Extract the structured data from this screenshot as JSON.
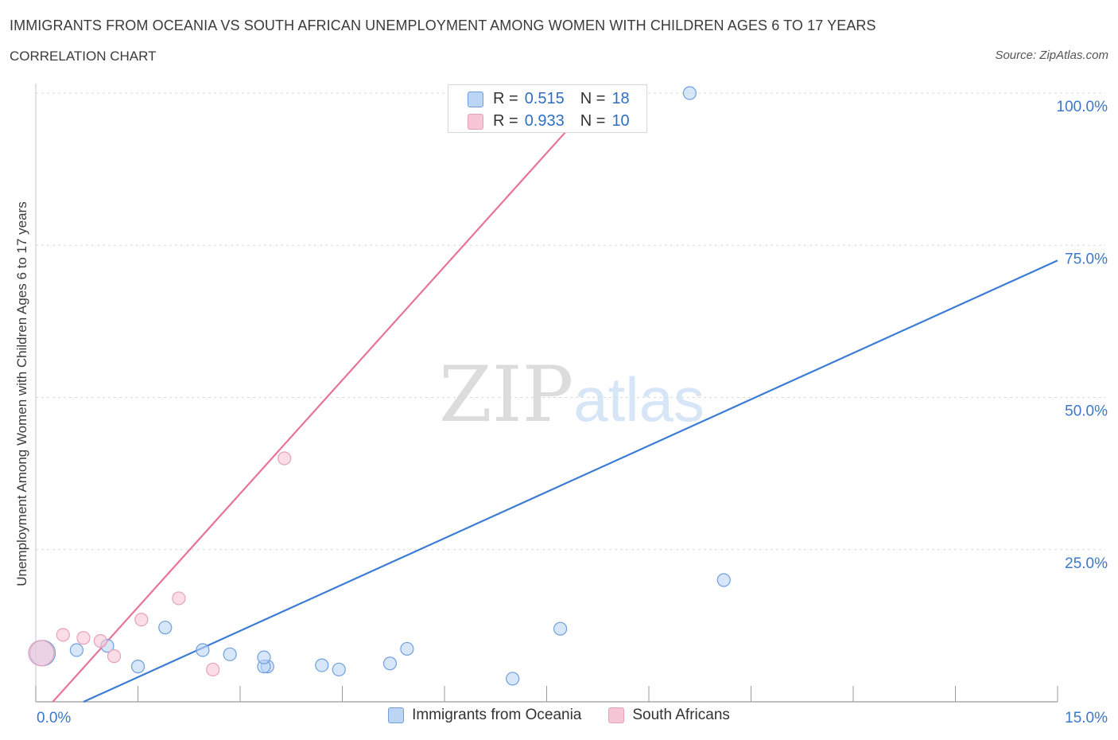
{
  "header": {
    "title": "IMMIGRANTS FROM OCEANIA VS SOUTH AFRICAN UNEMPLOYMENT AMONG WOMEN WITH CHILDREN AGES 6 TO 17 YEARS",
    "subtitle": "CORRELATION CHART",
    "source": "Source: ZipAtlas.com"
  },
  "watermark": {
    "zip": "ZIP",
    "atlas": "atlas"
  },
  "colors": {
    "blue": "#3a7bd5",
    "blue_fill": "#bcd5f5",
    "pink": "#e8739a",
    "pink_fill": "#f7c6d6",
    "axis_text": "#3b78c9",
    "grid": "#d9d9d9"
  },
  "legend_top": {
    "rows": [
      {
        "r_label": "R =",
        "r_value": "0.515",
        "n_label": "N =",
        "n_value": "18"
      },
      {
        "r_label": "R =",
        "r_value": "0.933",
        "n_label": "N =",
        "n_value": "10"
      }
    ]
  },
  "chart_data": {
    "type": "scatter",
    "title": "IMMIGRANTS FROM OCEANIA VS SOUTH AFRICAN UNEMPLOYMENT AMONG WOMEN WITH CHILDREN AGES 6 TO 17 YEARS",
    "subtitle": "CORRELATION CHART",
    "xlabel": "",
    "ylabel": "Unemployment Among Women with Children Ages 6 to 17 years",
    "xlim": [
      0,
      15
    ],
    "ylim": [
      0,
      100
    ],
    "x_tick_labels": [
      "0.0%",
      "15.0%"
    ],
    "y_ticks": [
      25,
      50,
      75,
      100
    ],
    "y_tick_labels": [
      "25.0%",
      "50.0%",
      "75.0%",
      "100.0%"
    ],
    "grid": true,
    "legend_position": "bottom",
    "series": [
      {
        "name": "Immigrants from Oceania",
        "r": 0.515,
        "n": 18,
        "trend": {
          "x1": 0.7,
          "y1": 0,
          "x2": 15,
          "y2": 72.5
        },
        "points": [
          {
            "x": 0.1,
            "y": 8,
            "large": true
          },
          {
            "x": 0.6,
            "y": 8.5
          },
          {
            "x": 1.05,
            "y": 9.2
          },
          {
            "x": 1.5,
            "y": 5.8
          },
          {
            "x": 1.9,
            "y": 12.2
          },
          {
            "x": 2.45,
            "y": 8.5
          },
          {
            "x": 2.85,
            "y": 7.8
          },
          {
            "x": 3.4,
            "y": 5.8
          },
          {
            "x": 3.35,
            "y": 5.8
          },
          {
            "x": 3.35,
            "y": 7.3
          },
          {
            "x": 4.2,
            "y": 6.0
          },
          {
            "x": 4.45,
            "y": 5.3
          },
          {
            "x": 5.2,
            "y": 6.3
          },
          {
            "x": 5.45,
            "y": 8.7
          },
          {
            "x": 7.0,
            "y": 3.8
          },
          {
            "x": 7.7,
            "y": 12.0
          },
          {
            "x": 9.6,
            "y": 100
          },
          {
            "x": 10.1,
            "y": 20.0
          }
        ]
      },
      {
        "name": "South Africans",
        "r": 0.933,
        "n": 10,
        "trend": {
          "x1": 0.25,
          "y1": 0,
          "x2": 8.05,
          "y2": 97
        },
        "points": [
          {
            "x": 0.08,
            "y": 8,
            "large": true
          },
          {
            "x": 0.4,
            "y": 11.0
          },
          {
            "x": 0.7,
            "y": 10.5
          },
          {
            "x": 0.95,
            "y": 10.0
          },
          {
            "x": 1.15,
            "y": 7.5
          },
          {
            "x": 1.55,
            "y": 13.5
          },
          {
            "x": 2.1,
            "y": 17.0
          },
          {
            "x": 2.6,
            "y": 5.3
          },
          {
            "x": 3.65,
            "y": 40.0
          },
          {
            "x": 7.2,
            "y": 100
          }
        ]
      }
    ]
  }
}
